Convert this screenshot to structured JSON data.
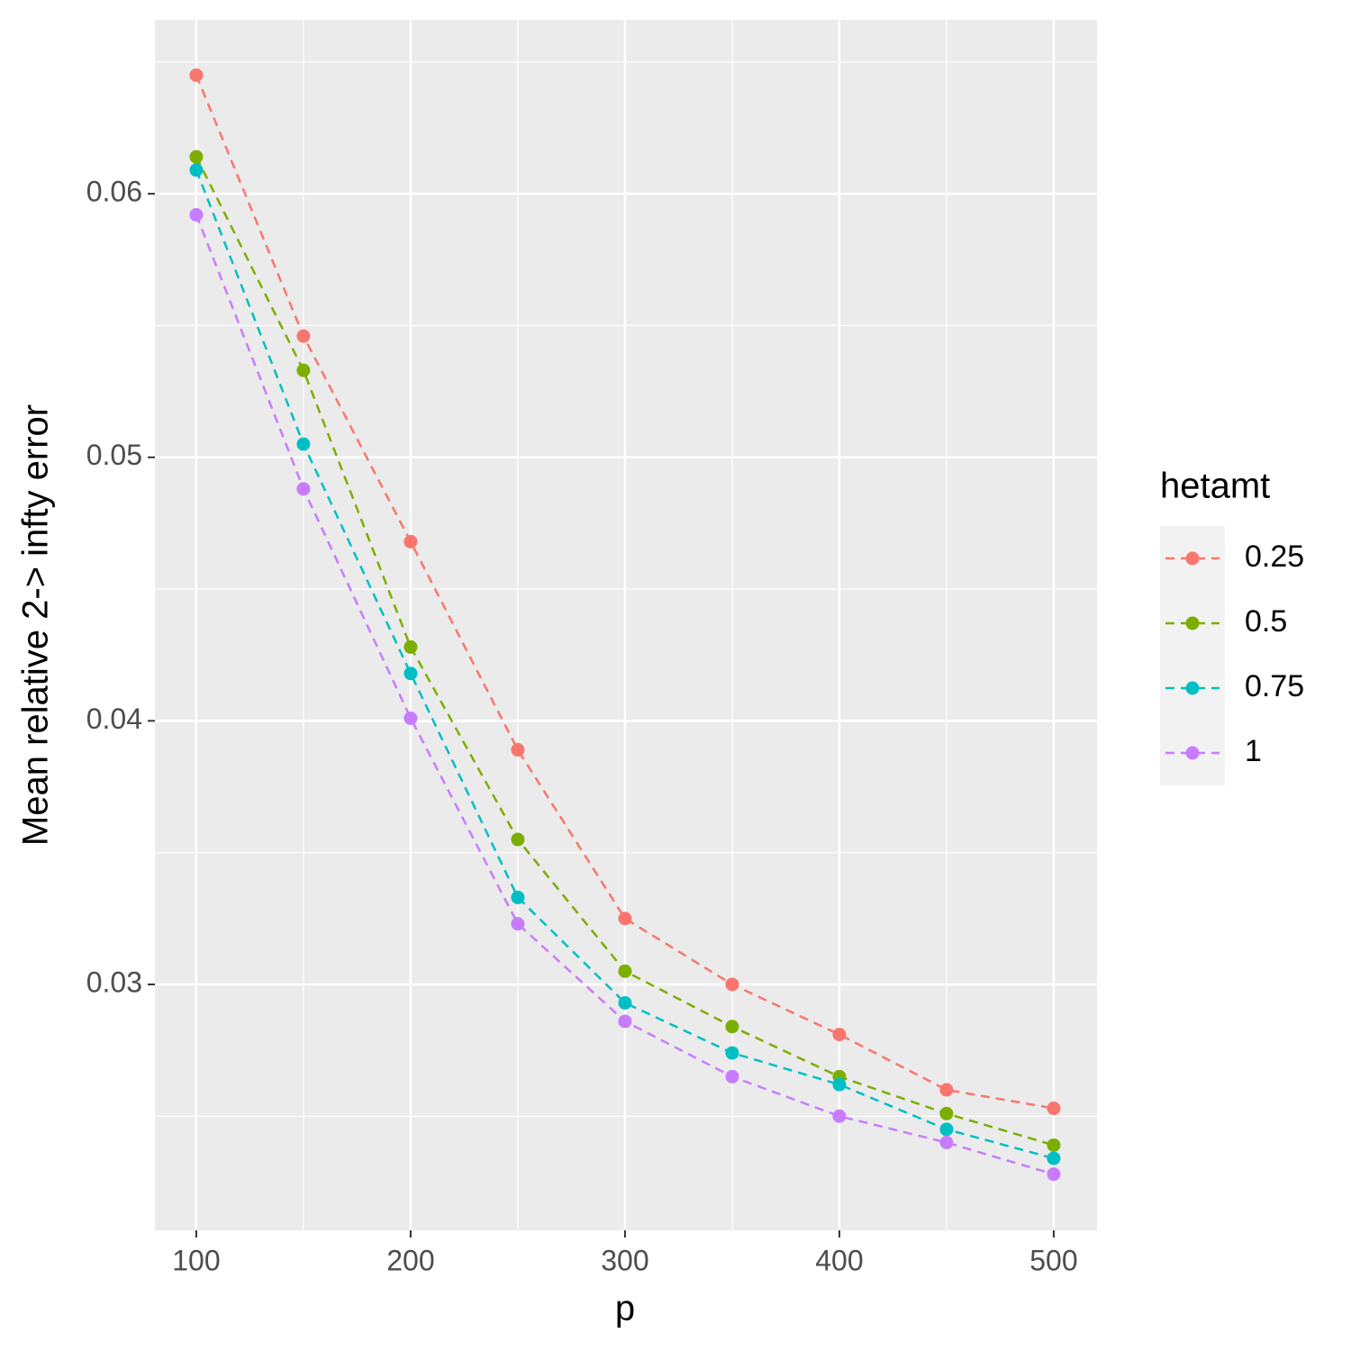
{
  "chart_data": {
    "type": "line",
    "x_label": "p",
    "y_label": "Mean relative 2-> infty error",
    "x": [
      100,
      150,
      200,
      250,
      300,
      350,
      400,
      450,
      500
    ],
    "series": [
      {
        "name": "0.25",
        "color": "#F8766D",
        "values": [
          0.0645,
          0.0546,
          0.0468,
          0.0389,
          0.0325,
          0.03,
          0.0281,
          0.026,
          0.0253
        ]
      },
      {
        "name": "0.5",
        "color": "#7CAE00",
        "values": [
          0.0614,
          0.0533,
          0.0428,
          0.0355,
          0.0305,
          0.0284,
          0.0265,
          0.0251,
          0.0239
        ]
      },
      {
        "name": "0.75",
        "color": "#00BFC4",
        "values": [
          0.0609,
          0.0505,
          0.0418,
          0.0333,
          0.0293,
          0.0274,
          0.0262,
          0.0245,
          0.0234
        ]
      },
      {
        "name": "1",
        "color": "#C77CFF",
        "values": [
          0.0592,
          0.0488,
          0.0401,
          0.0323,
          0.0286,
          0.0265,
          0.025,
          0.024,
          0.0228
        ]
      }
    ],
    "legend_title": "hetamt",
    "legend_position": "right",
    "xlim": [
      80.7,
      520.2
    ],
    "ylim": [
      0.02067,
      0.0666
    ],
    "xticks": [
      100,
      200,
      300,
      400,
      500
    ],
    "yticks": [
      {
        "value": 0.03,
        "label": "0.03"
      },
      {
        "value": 0.04,
        "label": "0.04"
      },
      {
        "value": 0.05,
        "label": "0.05"
      },
      {
        "value": 0.06,
        "label": "0.06"
      }
    ],
    "x_minor_ticks": [
      150,
      250,
      350,
      450
    ],
    "y_minor_ticks": [
      0.025,
      0.035,
      0.045,
      0.055,
      0.065
    ],
    "grid": true,
    "line_style": "dashed",
    "markers": true
  }
}
